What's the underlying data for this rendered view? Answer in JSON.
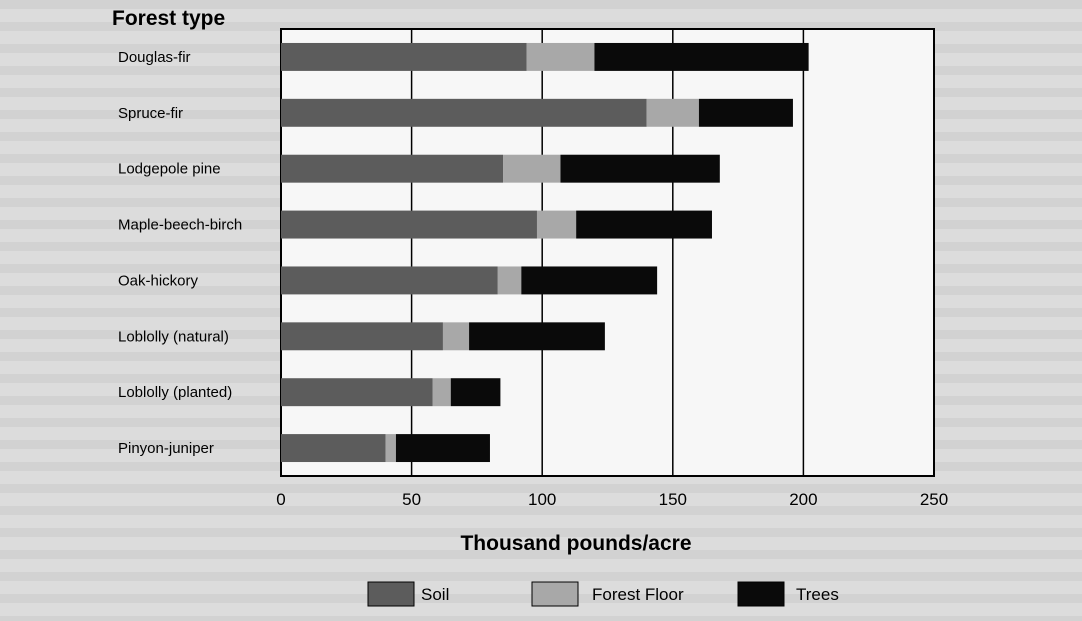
{
  "chart_data": {
    "type": "bar",
    "orientation": "horizontal",
    "stacked": true,
    "title": "Forest type",
    "xlabel": "Thousand pounds/acre",
    "xlim": [
      0,
      250
    ],
    "xticks": [
      0,
      50,
      100,
      150,
      200,
      250
    ],
    "grid": true,
    "legend_position": "bottom",
    "categories": [
      "Douglas-fir",
      "Spruce-fir",
      "Lodgepole pine",
      "Maple-beech-birch",
      "Oak-hickory",
      "Loblolly (natural)",
      "Loblolly (planted)",
      "Pinyon-juniper"
    ],
    "series": [
      {
        "name": "Soil",
        "color": "#5c5c5c",
        "values": [
          94,
          140,
          85,
          98,
          83,
          62,
          58,
          40
        ]
      },
      {
        "name": "Forest Floor",
        "color": "#a8a8a8",
        "values": [
          26,
          20,
          22,
          15,
          9,
          10,
          7,
          4
        ]
      },
      {
        "name": "Trees",
        "color": "#0a0a0a",
        "values": [
          82,
          36,
          61,
          52,
          52,
          52,
          19,
          36
        ]
      }
    ]
  }
}
